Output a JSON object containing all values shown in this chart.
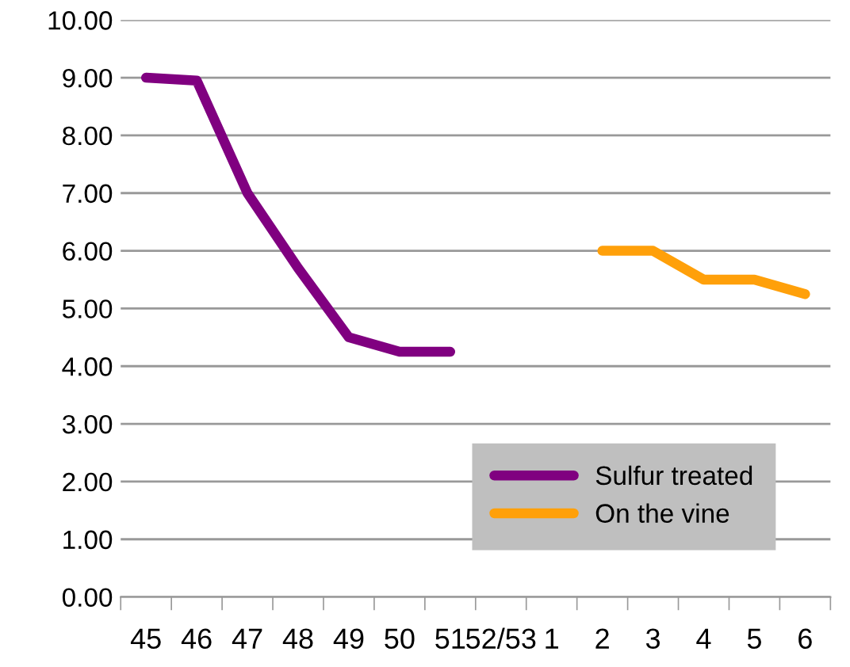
{
  "chart_data": {
    "type": "line",
    "categories": [
      "45",
      "46",
      "47",
      "48",
      "49",
      "50",
      "51",
      "52/53",
      "1",
      "2",
      "3",
      "4",
      "5",
      "6"
    ],
    "series": [
      {
        "name": "Sulfur treated",
        "color": "#800080",
        "values": [
          9.0,
          8.95,
          7.0,
          5.7,
          4.5,
          4.25,
          4.25,
          null,
          null,
          null,
          null,
          null,
          null,
          null
        ]
      },
      {
        "name": "On the vine",
        "color": "#ffa00a",
        "values": [
          null,
          null,
          null,
          null,
          null,
          null,
          null,
          null,
          null,
          6.0,
          6.0,
          5.5,
          5.5,
          5.25
        ]
      }
    ],
    "ylim": [
      0,
      10
    ],
    "yticks": [
      {
        "value": 0,
        "label": "0.00"
      },
      {
        "value": 1,
        "label": "1.00"
      },
      {
        "value": 2,
        "label": "2.00"
      },
      {
        "value": 3,
        "label": "3.00"
      },
      {
        "value": 4,
        "label": "4.00"
      },
      {
        "value": 5,
        "label": "5.00"
      },
      {
        "value": 6,
        "label": "6.00"
      },
      {
        "value": 7,
        "label": "7.00"
      },
      {
        "value": 8,
        "label": "8.00"
      },
      {
        "value": 9,
        "label": "9.00"
      },
      {
        "value": 10,
        "label": "10.00"
      }
    ],
    "grid": "y",
    "legend": "bottom right",
    "marker": "none",
    "line_style": "solid"
  }
}
